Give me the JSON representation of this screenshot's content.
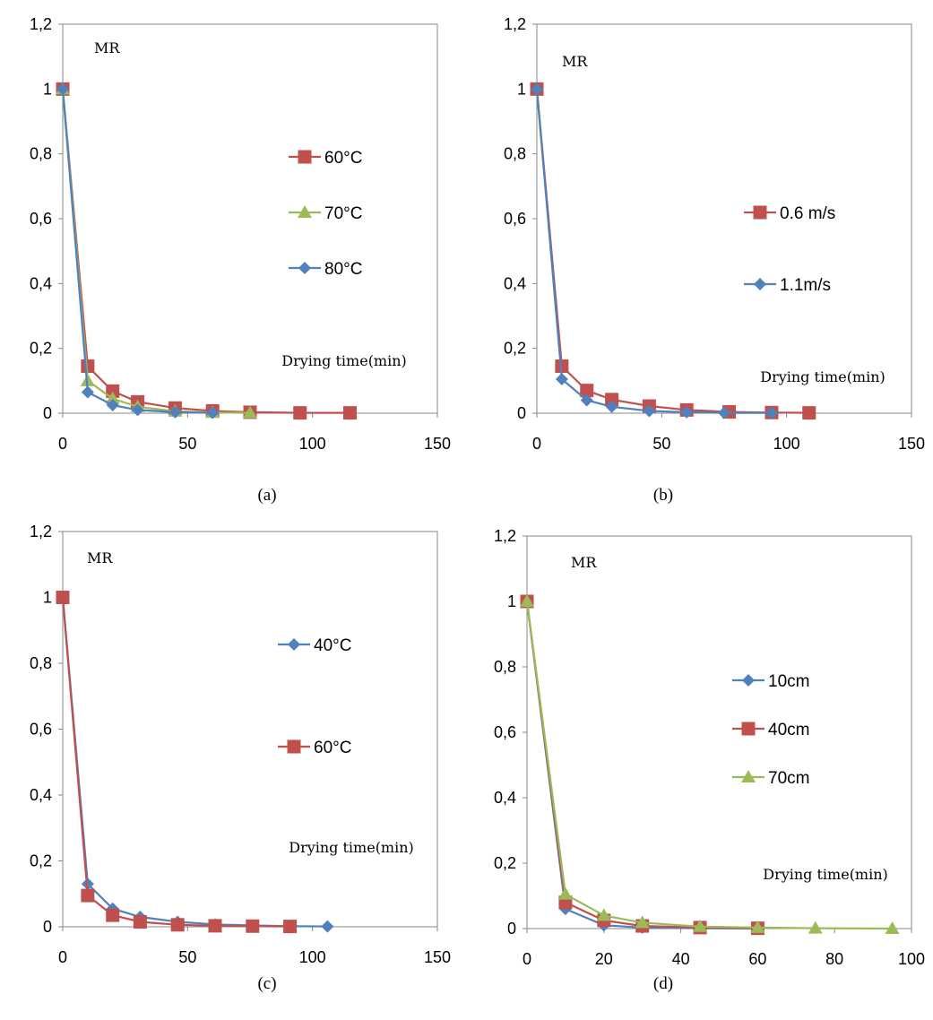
{
  "chart_data": [
    {
      "type": "line",
      "caption": "(a)",
      "ylabel": "MR",
      "xlabel": "Drying time(min)",
      "xlim": [
        0,
        150
      ],
      "ylim": [
        0,
        1.2
      ],
      "xticks": [
        "0",
        "50",
        "100",
        "150"
      ],
      "yticks": [
        "0",
        "0,2",
        "0,4",
        "0,6",
        "0,8",
        "1",
        "1,2"
      ],
      "legend_position": "right-middle",
      "series": [
        {
          "name": "60°C",
          "color": "#c0504d",
          "marker": "square",
          "x": [
            0,
            10,
            20,
            30,
            45,
            60,
            75,
            95,
            115
          ],
          "y": [
            1.0,
            0.145,
            0.068,
            0.035,
            0.016,
            0.007,
            0.003,
            0.001,
            0.001
          ]
        },
        {
          "name": "70°C",
          "color": "#9bbb59",
          "marker": "triangle",
          "x": [
            0,
            10,
            20,
            30,
            45,
            60,
            75
          ],
          "y": [
            1.0,
            0.1,
            0.045,
            0.02,
            0.006,
            0.002,
            0.001
          ]
        },
        {
          "name": "80°C",
          "color": "#4f81bd",
          "marker": "diamond",
          "x": [
            0,
            10,
            20,
            30,
            45,
            60
          ],
          "y": [
            1.0,
            0.065,
            0.025,
            0.01,
            0.003,
            0.001
          ]
        }
      ]
    },
    {
      "type": "line",
      "caption": "(b)",
      "ylabel": "MR",
      "xlabel": "Drying time(min)",
      "xlim": [
        0,
        150
      ],
      "ylim": [
        0,
        1.2
      ],
      "xticks": [
        "0",
        "50",
        "100",
        "150"
      ],
      "yticks": [
        "0",
        "0,2",
        "0,4",
        "0,6",
        "0,8",
        "1",
        "1,2"
      ],
      "legend_position": "right-middle",
      "series": [
        {
          "name": "0.6 m/s",
          "color": "#c0504d",
          "marker": "square",
          "x": [
            0,
            10,
            20,
            30,
            45,
            60,
            77,
            94,
            109
          ],
          "y": [
            1.0,
            0.145,
            0.07,
            0.042,
            0.022,
            0.01,
            0.004,
            0.002,
            0.001
          ]
        },
        {
          "name": "1.1m/s",
          "color": "#4f81bd",
          "marker": "diamond",
          "x": [
            0,
            10,
            20,
            30,
            45,
            60,
            75,
            94
          ],
          "y": [
            1.0,
            0.105,
            0.04,
            0.02,
            0.007,
            0.003,
            0.001,
            0.001
          ]
        }
      ]
    },
    {
      "type": "line",
      "caption": "(c)",
      "ylabel": "MR",
      "xlabel": "Drying time(min)",
      "xlim": [
        0,
        150
      ],
      "ylim": [
        0,
        1.2
      ],
      "xticks": [
        "0",
        "50",
        "100",
        "150"
      ],
      "yticks": [
        "0",
        "0,2",
        "0,4",
        "0,6",
        "0,8",
        "1",
        "1,2"
      ],
      "legend_position": "right-middle",
      "series": [
        {
          "name": "40°C",
          "color": "#4f81bd",
          "marker": "diamond",
          "x": [
            0,
            10,
            20,
            31,
            46,
            61,
            76,
            91,
            106
          ],
          "y": [
            1.0,
            0.13,
            0.055,
            0.03,
            0.015,
            0.007,
            0.004,
            0.002,
            0.001
          ]
        },
        {
          "name": "60°C",
          "color": "#c0504d",
          "marker": "square",
          "x": [
            0,
            10,
            20,
            31,
            46,
            61,
            76,
            91
          ],
          "y": [
            1.0,
            0.095,
            0.035,
            0.015,
            0.006,
            0.003,
            0.002,
            0.001
          ]
        }
      ]
    },
    {
      "type": "line",
      "caption": "(d)",
      "ylabel": "MR",
      "xlabel": "Drying time(min)",
      "xlim": [
        0,
        100
      ],
      "ylim": [
        0,
        1.2
      ],
      "xticks": [
        "0",
        "20",
        "40",
        "60",
        "80",
        "100"
      ],
      "yticks": [
        "0",
        "0,2",
        "0,4",
        "0,6",
        "0,8",
        "1",
        "1,2"
      ],
      "legend_position": "right-middle",
      "series": [
        {
          "name": "10cm",
          "color": "#4f81bd",
          "marker": "diamond",
          "x": [
            0,
            10,
            20,
            30,
            45,
            60
          ],
          "y": [
            1.0,
            0.06,
            0.01,
            0.003,
            0.001,
            0.0
          ]
        },
        {
          "name": "40cm",
          "color": "#c0504d",
          "marker": "square",
          "x": [
            0,
            10,
            20,
            30,
            45,
            60
          ],
          "y": [
            1.0,
            0.08,
            0.025,
            0.008,
            0.003,
            0.001
          ]
        },
        {
          "name": "70cm",
          "color": "#9bbb59",
          "marker": "triangle",
          "x": [
            0,
            10,
            20,
            30,
            45,
            60,
            75,
            95
          ],
          "y": [
            1.0,
            0.105,
            0.04,
            0.018,
            0.006,
            0.003,
            0.001,
            0.0
          ]
        }
      ]
    }
  ]
}
